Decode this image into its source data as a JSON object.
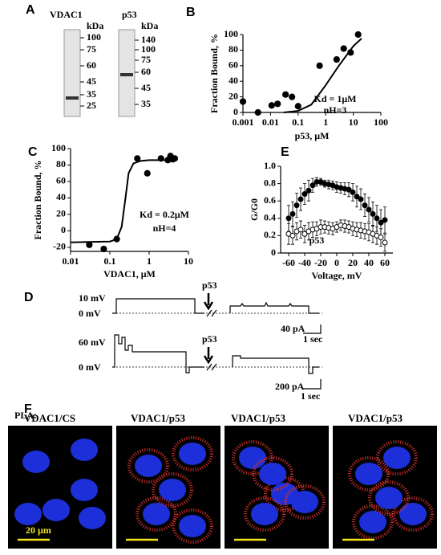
{
  "chart_data": [
    {
      "panel": "B",
      "type": "scatter",
      "ylabel": "Fraction Bound, %",
      "xlabel": "p53, μM",
      "x_log": true,
      "xlim": [
        0.001,
        100
      ],
      "ylim": [
        0,
        100
      ],
      "xticks": [
        0.001,
        0.01,
        0.1,
        1,
        10,
        100
      ],
      "yticks": [
        0,
        20,
        40,
        60,
        80,
        100
      ],
      "series": [
        {
          "color": "#000000",
          "marker": "filled",
          "x": [
            0.001,
            0.0035,
            0.011,
            0.018,
            0.035,
            0.06,
            0.1,
            0.6,
            2.5,
            4.5,
            8,
            15
          ],
          "values": [
            14,
            0,
            9,
            11,
            23,
            20,
            8,
            60,
            68,
            82,
            77,
            100
          ]
        },
        {
          "color": "#000000",
          "style": "line",
          "x": [
            0.03,
            0.1,
            0.3,
            1,
            3,
            10,
            20
          ],
          "values": [
            0,
            2,
            10,
            35,
            60,
            85,
            95
          ]
        }
      ],
      "annotations": [
        "Kd = 1μM",
        "nH=3"
      ]
    },
    {
      "panel": "C",
      "type": "scatter",
      "ylabel": "Fraction Bound, %",
      "xlabel": "VDAC1, μM",
      "x_log": true,
      "xlim": [
        0.01,
        10
      ],
      "ylim": [
        -25,
        100
      ],
      "xticks": [
        0.01,
        0.1,
        1,
        10
      ],
      "yticks": [
        -20,
        0,
        20,
        40,
        60,
        80,
        100
      ],
      "series": [
        {
          "color": "#000000",
          "marker": "filled",
          "x": [
            0.03,
            0.07,
            0.15,
            0.5,
            0.9,
            2,
            3,
            3.5,
            4,
            4.5
          ],
          "values": [
            -17,
            -22,
            -10,
            88,
            70,
            88,
            86,
            91,
            87,
            88
          ]
        },
        {
          "color": "#000000",
          "style": "line",
          "x": [
            0.01,
            0.1,
            0.15,
            0.2,
            0.25,
            0.3,
            0.4,
            0.6,
            1,
            5
          ],
          "values": [
            -14,
            -13,
            -10,
            5,
            40,
            70,
            82,
            85,
            86,
            86
          ]
        }
      ],
      "annotations": [
        "Kd = 0.2μM",
        "nH=4"
      ]
    },
    {
      "panel": "E",
      "type": "scatter",
      "ylabel": "G/G0",
      "xlabel": "Voltage, mV",
      "x_log": false,
      "xlim": [
        -70,
        70
      ],
      "ylim": [
        0,
        1
      ],
      "xticks": [
        -60,
        -40,
        -20,
        0,
        20,
        40,
        60
      ],
      "yticks": [
        0,
        0.2,
        0.4,
        0.6,
        0.8,
        {
          "value": 1,
          "label": "1.0"
        }
      ],
      "series": [
        {
          "color": "#000000",
          "marker": "filled",
          "x": [
            -60,
            -55,
            -50,
            -45,
            -40,
            -35,
            -30,
            -25,
            -20,
            -15,
            -10,
            -5,
            0,
            5,
            10,
            15,
            20,
            25,
            30,
            35,
            40,
            45,
            50,
            55,
            60
          ],
          "values": [
            0.4,
            0.45,
            0.55,
            0.62,
            0.68,
            0.72,
            0.78,
            0.82,
            0.82,
            0.8,
            0.79,
            0.78,
            0.76,
            0.75,
            0.74,
            0.73,
            0.7,
            0.65,
            0.62,
            0.55,
            0.5,
            0.45,
            0.4,
            0.35,
            0.38
          ],
          "errors": [
            0.15,
            0.14,
            0.14,
            0.13,
            0.12,
            0.12,
            0.08,
            0.05,
            0.04,
            0.04,
            0.05,
            0.05,
            0.06,
            0.06,
            0.07,
            0.08,
            0.1,
            0.12,
            0.12,
            0.13,
            0.14,
            0.14,
            0.15,
            0.15,
            0.15
          ]
        },
        {
          "color": "#000000",
          "marker": "open",
          "x": [
            -60,
            -55,
            -50,
            -45,
            -40,
            -35,
            -30,
            -25,
            -20,
            -15,
            -10,
            -5,
            0,
            5,
            10,
            15,
            20,
            25,
            30,
            35,
            40,
            45,
            50,
            55,
            60
          ],
          "values": [
            0.22,
            0.2,
            0.25,
            0.27,
            0.22,
            0.25,
            0.27,
            0.28,
            0.3,
            0.3,
            0.29,
            0.28,
            0.3,
            0.32,
            0.31,
            0.3,
            0.28,
            0.27,
            0.26,
            0.25,
            0.24,
            0.22,
            0.2,
            0.18,
            0.12
          ],
          "errors": [
            0.12,
            0.1,
            0.1,
            0.1,
            0.1,
            0.1,
            0.09,
            0.08,
            0.08,
            0.07,
            0.07,
            0.07,
            0.06,
            0.06,
            0.07,
            0.07,
            0.08,
            0.08,
            0.09,
            0.09,
            0.1,
            0.1,
            0.1,
            0.1,
            0.1
          ]
        }
      ],
      "annotations": [
        "p53"
      ]
    }
  ],
  "panels": {
    "A": {
      "letter": "A",
      "lanes": [
        {
          "label": "VDAC1",
          "unit": "kDa",
          "markers": [
            100,
            75,
            60,
            45,
            35,
            25
          ]
        },
        {
          "label": "p53",
          "unit": "kDa",
          "markers": [
            140,
            100,
            75,
            60,
            45,
            35
          ]
        }
      ]
    },
    "D": {
      "letter": "D",
      "traces": [
        {
          "voltage": "10 mV",
          "zero": "0 mV",
          "treatment": "p53",
          "scale_current": "40 pA",
          "scale_time": "1 sec"
        },
        {
          "voltage": "60 mV",
          "zero": "0 mV",
          "treatment": "p53",
          "scale_current": "200 pA",
          "scale_time": "1 sec"
        }
      ]
    },
    "F": {
      "letter": "F",
      "row_label": "PLA:",
      "images": [
        "VDAC1/CS",
        "VDAC1/p53",
        "VDAC1/p53",
        "VDAC1/p53"
      ],
      "scale_bar": "20 µm"
    }
  }
}
